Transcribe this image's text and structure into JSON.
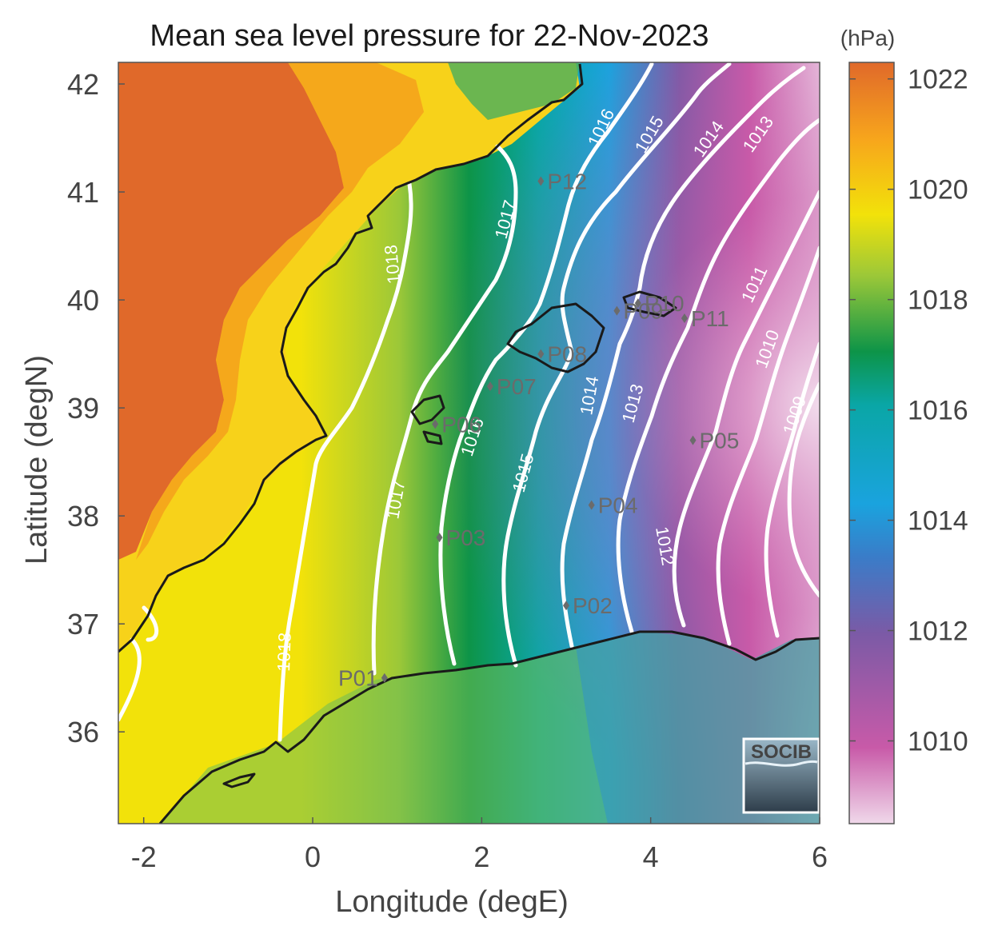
{
  "title": "Mean sea level pressure for 22-Nov-2023",
  "colorbar": {
    "unit": "(hPa)",
    "min": 1008.5,
    "max": 1022.3,
    "ticks": [
      "1022",
      "1020",
      "1018",
      "1016",
      "1014",
      "1012",
      "1010"
    ],
    "tick_values": [
      1022,
      1020,
      1018,
      1016,
      1014,
      1012,
      1010
    ],
    "colors": [
      "#e8c4e0",
      "#c85aa8",
      "#7b5aa6",
      "#1aa3de",
      "#0aa6a6",
      "#0d9448",
      "#9cc838",
      "#f2e20a",
      "#f7a51c",
      "#e0692a"
    ]
  },
  "axes": {
    "xlabel": "Longitude (degE)",
    "ylabel": "Latitude (degN)",
    "xlim": [
      -2.3,
      6.0
    ],
    "ylim": [
      35.15,
      42.2
    ],
    "xticks": [
      "-2",
      "0",
      "2",
      "4",
      "6"
    ],
    "xtick_values": [
      -2,
      0,
      2,
      4,
      6
    ],
    "yticks": [
      "42",
      "41",
      "40",
      "39",
      "38",
      "37",
      "36"
    ],
    "ytick_values": [
      42,
      41,
      40,
      39,
      38,
      37,
      36
    ]
  },
  "stations": [
    {
      "label": "P01",
      "lon": 0.85,
      "lat": 36.5
    },
    {
      "label": "P02",
      "lon": 3.0,
      "lat": 37.17
    },
    {
      "label": "P03",
      "lon": 1.5,
      "lat": 37.8
    },
    {
      "label": "P04",
      "lon": 3.3,
      "lat": 38.1
    },
    {
      "label": "P05",
      "lon": 4.5,
      "lat": 38.7
    },
    {
      "label": "P06",
      "lon": 1.45,
      "lat": 38.85
    },
    {
      "label": "P07",
      "lon": 2.1,
      "lat": 39.2
    },
    {
      "label": "P08",
      "lon": 2.7,
      "lat": 39.5
    },
    {
      "label": "P09",
      "lon": 3.6,
      "lat": 39.9
    },
    {
      "label": "P10",
      "lon": 3.85,
      "lat": 39.97
    },
    {
      "label": "P11",
      "lon": 4.4,
      "lat": 39.83
    },
    {
      "label": "P12",
      "lon": 2.7,
      "lat": 41.1
    }
  ],
  "contour_labels": [
    "1018",
    "1017",
    "1016",
    "1015",
    "1014",
    "1013",
    "1012",
    "1011",
    "1010",
    "1009"
  ],
  "logo_text": "SOCIB"
}
